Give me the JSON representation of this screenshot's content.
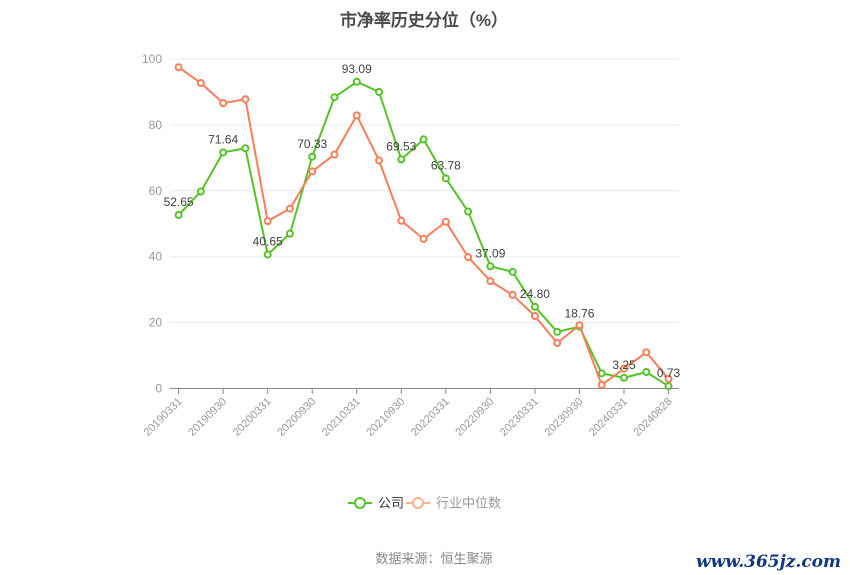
{
  "page": {
    "background": "#ffffff"
  },
  "colors": {
    "grid": "#e4eaf2",
    "axis": "#888888",
    "tick_label": "#999999",
    "data_label": "#404040",
    "title": "#4a4a4a",
    "source": "#888888",
    "watermark": "#11387e"
  },
  "legend": {
    "items": [
      {
        "label": "公司",
        "icon_color": "#54c327",
        "label_color": "#333333"
      },
      {
        "label": "行业中位数",
        "icon_color": "#f9b193",
        "label_color": "#999999"
      }
    ]
  },
  "footer": {
    "source_text": "数据来源：恒生聚源",
    "watermark": "www.365jz.com"
  },
  "chart_data": {
    "type": "line",
    "title": "市净率历史分位（%）",
    "categories": [
      "20190331",
      "20190930",
      "20200331",
      "20200930",
      "20210331",
      "20210930",
      "20220331",
      "20220930",
      "20230331",
      "20230930",
      "20240331",
      "20240828"
    ],
    "x_layout_note": "data points quarterly; axis ticks/labels at every 2nd point",
    "ylim": [
      0,
      100
    ],
    "y_ticks": [
      0,
      20,
      40,
      60,
      80,
      100
    ],
    "grid": "horizontal",
    "legend_position": "bottom",
    "series": [
      {
        "key": "company",
        "name": "公司",
        "color": "#54c327",
        "values": [
          52.65,
          59.8,
          71.64,
          72.9,
          40.65,
          47.0,
          70.33,
          88.4,
          93.09,
          90.0,
          69.53,
          75.6,
          63.78,
          53.7,
          37.09,
          35.4,
          24.8,
          17.2,
          18.76,
          4.6,
          3.25,
          5.0,
          0.73
        ],
        "shown_labels": [
          "52.65",
          "71.64",
          "40.65",
          "70.33",
          "93.09",
          "69.53",
          "63.78",
          "37.09",
          "24.80",
          "18.76",
          "3.25",
          "0.73"
        ]
      },
      {
        "key": "industry",
        "name": "行业中位数",
        "color": "#f77e57",
        "values": [
          97.5,
          92.7,
          86.6,
          87.8,
          50.8,
          54.6,
          65.9,
          71.0,
          82.9,
          69.2,
          50.9,
          45.4,
          50.6,
          39.9,
          32.6,
          28.4,
          22.0,
          13.8,
          19.2,
          1.1,
          6.0,
          11.0,
          2.9
        ],
        "shown_labels": []
      }
    ]
  }
}
